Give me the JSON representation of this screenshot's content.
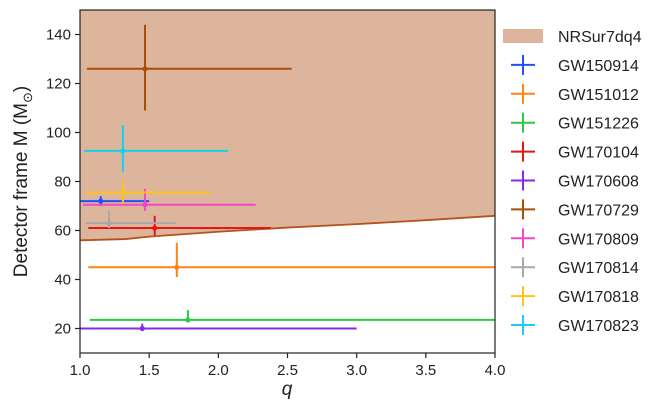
{
  "chart_data": {
    "type": "scatter",
    "title": "",
    "xlabel": "q",
    "ylabel": "Detector frame M (M",
    "ylabel_subscript": "⊙",
    "ylabel_close": ")",
    "xlim": [
      1.0,
      4.0
    ],
    "ylim": [
      10,
      150
    ],
    "xticks": [
      1.0,
      1.5,
      2.0,
      2.5,
      3.0,
      3.5,
      4.0
    ],
    "xtick_labels": [
      "1.0",
      "1.5",
      "2.0",
      "2.5",
      "3.0",
      "3.5",
      "4.0"
    ],
    "yticks": [
      20,
      40,
      60,
      80,
      100,
      120,
      140
    ],
    "ytick_labels": [
      "20",
      "40",
      "60",
      "80",
      "100",
      "120",
      "140"
    ],
    "grid": false,
    "legend_position": "outside-right",
    "region": {
      "name": "NRSur7dq4",
      "fill_color": "#dcb59c",
      "edge_color": "#b5531d",
      "boundary": [
        [
          1.0,
          56
        ],
        [
          1.33,
          56.5
        ],
        [
          1.5,
          57.5
        ],
        [
          2.0,
          59.5
        ],
        [
          2.5,
          61.2
        ],
        [
          3.0,
          62.6
        ],
        [
          3.5,
          64.2
        ],
        [
          4.0,
          66
        ]
      ]
    },
    "series": [
      {
        "name": "GW150914",
        "color": "#1f4fff",
        "q": 1.15,
        "q_lo": 1.0,
        "q_hi": 1.5,
        "M": 72,
        "M_lo": 70,
        "M_hi": 74
      },
      {
        "name": "GW151012",
        "color": "#ff8412",
        "q": 1.7,
        "q_lo": 1.06,
        "q_hi": 4.0,
        "M": 45,
        "M_lo": 41,
        "M_hi": 55
      },
      {
        "name": "GW151226",
        "color": "#2cc944",
        "q": 1.78,
        "q_lo": 1.07,
        "q_hi": 4.0,
        "M": 23.5,
        "M_lo": 22.5,
        "M_hi": 27.5
      },
      {
        "name": "GW170104",
        "color": "#e81515",
        "q": 1.54,
        "q_lo": 1.06,
        "q_hi": 2.38,
        "M": 61,
        "M_lo": 58,
        "M_hi": 66
      },
      {
        "name": "GW170608",
        "color": "#8a2be2",
        "q": 1.45,
        "q_lo": 1.0,
        "q_hi": 3.0,
        "M": 20,
        "M_lo": 19,
        "M_hi": 22
      },
      {
        "name": "GW170729",
        "color": "#a64f05",
        "q": 1.47,
        "q_lo": 1.05,
        "q_hi": 2.53,
        "M": 126,
        "M_lo": 109,
        "M_hi": 144
      },
      {
        "name": "GW170809",
        "color": "#f249c3",
        "q": 1.47,
        "q_lo": 1.02,
        "q_hi": 2.27,
        "M": 70.5,
        "M_lo": 68,
        "M_hi": 77
      },
      {
        "name": "GW170814",
        "color": "#a8a8a8",
        "q": 1.21,
        "q_lo": 1.04,
        "q_hi": 1.69,
        "M": 63,
        "M_lo": 61,
        "M_hi": 68
      },
      {
        "name": "GW170818",
        "color": "#ffc21a",
        "q": 1.31,
        "q_lo": 1.04,
        "q_hi": 1.95,
        "M": 75.5,
        "M_lo": 71,
        "M_hi": 80
      },
      {
        "name": "GW170823",
        "color": "#16d0f0",
        "q": 1.31,
        "q_lo": 1.03,
        "q_hi": 2.07,
        "M": 92.5,
        "M_lo": 84,
        "M_hi": 103
      }
    ]
  }
}
